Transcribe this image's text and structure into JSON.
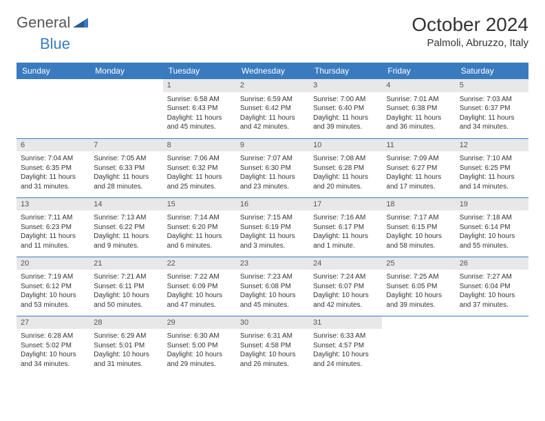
{
  "logo": {
    "text1": "General",
    "text2": "Blue"
  },
  "title": "October 2024",
  "location": "Palmoli, Abruzzo, Italy",
  "weekdays": [
    "Sunday",
    "Monday",
    "Tuesday",
    "Wednesday",
    "Thursday",
    "Friday",
    "Saturday"
  ],
  "colors": {
    "header_bg": "#3a7bbf",
    "header_text": "#ffffff",
    "daynum_bg": "#e8e8e8",
    "border": "#3a7bbf",
    "logo_blue": "#3a7bbf",
    "text": "#333333"
  },
  "weeks": [
    [
      {
        "day": "",
        "sunrise": "",
        "sunset": "",
        "daylight": ""
      },
      {
        "day": "",
        "sunrise": "",
        "sunset": "",
        "daylight": ""
      },
      {
        "day": "1",
        "sunrise": "Sunrise: 6:58 AM",
        "sunset": "Sunset: 6:43 PM",
        "daylight": "Daylight: 11 hours and 45 minutes."
      },
      {
        "day": "2",
        "sunrise": "Sunrise: 6:59 AM",
        "sunset": "Sunset: 6:42 PM",
        "daylight": "Daylight: 11 hours and 42 minutes."
      },
      {
        "day": "3",
        "sunrise": "Sunrise: 7:00 AM",
        "sunset": "Sunset: 6:40 PM",
        "daylight": "Daylight: 11 hours and 39 minutes."
      },
      {
        "day": "4",
        "sunrise": "Sunrise: 7:01 AM",
        "sunset": "Sunset: 6:38 PM",
        "daylight": "Daylight: 11 hours and 36 minutes."
      },
      {
        "day": "5",
        "sunrise": "Sunrise: 7:03 AM",
        "sunset": "Sunset: 6:37 PM",
        "daylight": "Daylight: 11 hours and 34 minutes."
      }
    ],
    [
      {
        "day": "6",
        "sunrise": "Sunrise: 7:04 AM",
        "sunset": "Sunset: 6:35 PM",
        "daylight": "Daylight: 11 hours and 31 minutes."
      },
      {
        "day": "7",
        "sunrise": "Sunrise: 7:05 AM",
        "sunset": "Sunset: 6:33 PM",
        "daylight": "Daylight: 11 hours and 28 minutes."
      },
      {
        "day": "8",
        "sunrise": "Sunrise: 7:06 AM",
        "sunset": "Sunset: 6:32 PM",
        "daylight": "Daylight: 11 hours and 25 minutes."
      },
      {
        "day": "9",
        "sunrise": "Sunrise: 7:07 AM",
        "sunset": "Sunset: 6:30 PM",
        "daylight": "Daylight: 11 hours and 23 minutes."
      },
      {
        "day": "10",
        "sunrise": "Sunrise: 7:08 AM",
        "sunset": "Sunset: 6:28 PM",
        "daylight": "Daylight: 11 hours and 20 minutes."
      },
      {
        "day": "11",
        "sunrise": "Sunrise: 7:09 AM",
        "sunset": "Sunset: 6:27 PM",
        "daylight": "Daylight: 11 hours and 17 minutes."
      },
      {
        "day": "12",
        "sunrise": "Sunrise: 7:10 AM",
        "sunset": "Sunset: 6:25 PM",
        "daylight": "Daylight: 11 hours and 14 minutes."
      }
    ],
    [
      {
        "day": "13",
        "sunrise": "Sunrise: 7:11 AM",
        "sunset": "Sunset: 6:23 PM",
        "daylight": "Daylight: 11 hours and 11 minutes."
      },
      {
        "day": "14",
        "sunrise": "Sunrise: 7:13 AM",
        "sunset": "Sunset: 6:22 PM",
        "daylight": "Daylight: 11 hours and 9 minutes."
      },
      {
        "day": "15",
        "sunrise": "Sunrise: 7:14 AM",
        "sunset": "Sunset: 6:20 PM",
        "daylight": "Daylight: 11 hours and 6 minutes."
      },
      {
        "day": "16",
        "sunrise": "Sunrise: 7:15 AM",
        "sunset": "Sunset: 6:19 PM",
        "daylight": "Daylight: 11 hours and 3 minutes."
      },
      {
        "day": "17",
        "sunrise": "Sunrise: 7:16 AM",
        "sunset": "Sunset: 6:17 PM",
        "daylight": "Daylight: 11 hours and 1 minute."
      },
      {
        "day": "18",
        "sunrise": "Sunrise: 7:17 AM",
        "sunset": "Sunset: 6:15 PM",
        "daylight": "Daylight: 10 hours and 58 minutes."
      },
      {
        "day": "19",
        "sunrise": "Sunrise: 7:18 AM",
        "sunset": "Sunset: 6:14 PM",
        "daylight": "Daylight: 10 hours and 55 minutes."
      }
    ],
    [
      {
        "day": "20",
        "sunrise": "Sunrise: 7:19 AM",
        "sunset": "Sunset: 6:12 PM",
        "daylight": "Daylight: 10 hours and 53 minutes."
      },
      {
        "day": "21",
        "sunrise": "Sunrise: 7:21 AM",
        "sunset": "Sunset: 6:11 PM",
        "daylight": "Daylight: 10 hours and 50 minutes."
      },
      {
        "day": "22",
        "sunrise": "Sunrise: 7:22 AM",
        "sunset": "Sunset: 6:09 PM",
        "daylight": "Daylight: 10 hours and 47 minutes."
      },
      {
        "day": "23",
        "sunrise": "Sunrise: 7:23 AM",
        "sunset": "Sunset: 6:08 PM",
        "daylight": "Daylight: 10 hours and 45 minutes."
      },
      {
        "day": "24",
        "sunrise": "Sunrise: 7:24 AM",
        "sunset": "Sunset: 6:07 PM",
        "daylight": "Daylight: 10 hours and 42 minutes."
      },
      {
        "day": "25",
        "sunrise": "Sunrise: 7:25 AM",
        "sunset": "Sunset: 6:05 PM",
        "daylight": "Daylight: 10 hours and 39 minutes."
      },
      {
        "day": "26",
        "sunrise": "Sunrise: 7:27 AM",
        "sunset": "Sunset: 6:04 PM",
        "daylight": "Daylight: 10 hours and 37 minutes."
      }
    ],
    [
      {
        "day": "27",
        "sunrise": "Sunrise: 6:28 AM",
        "sunset": "Sunset: 5:02 PM",
        "daylight": "Daylight: 10 hours and 34 minutes."
      },
      {
        "day": "28",
        "sunrise": "Sunrise: 6:29 AM",
        "sunset": "Sunset: 5:01 PM",
        "daylight": "Daylight: 10 hours and 31 minutes."
      },
      {
        "day": "29",
        "sunrise": "Sunrise: 6:30 AM",
        "sunset": "Sunset: 5:00 PM",
        "daylight": "Daylight: 10 hours and 29 minutes."
      },
      {
        "day": "30",
        "sunrise": "Sunrise: 6:31 AM",
        "sunset": "Sunset: 4:58 PM",
        "daylight": "Daylight: 10 hours and 26 minutes."
      },
      {
        "day": "31",
        "sunrise": "Sunrise: 6:33 AM",
        "sunset": "Sunset: 4:57 PM",
        "daylight": "Daylight: 10 hours and 24 minutes."
      },
      {
        "day": "",
        "sunrise": "",
        "sunset": "",
        "daylight": ""
      },
      {
        "day": "",
        "sunrise": "",
        "sunset": "",
        "daylight": ""
      }
    ]
  ]
}
